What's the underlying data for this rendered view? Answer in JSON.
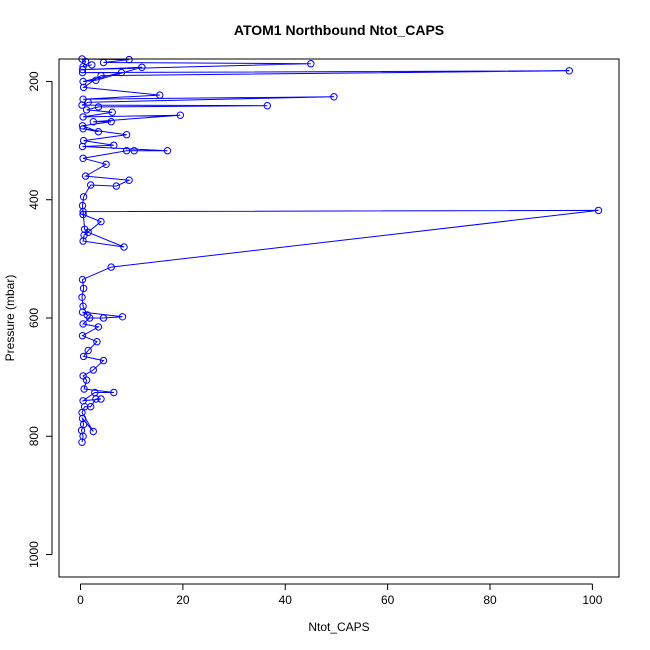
{
  "chart_data": {
    "type": "line",
    "title": "ATOM1 Northbound Ntot_CAPS",
    "xlabel": "Ntot_CAPS",
    "ylabel": "Pressure (mbar)",
    "xlim": [
      -4.2,
      105.2
    ],
    "ylim": [
      1038,
      162
    ],
    "y_reversed": true,
    "xticks": [
      0,
      20,
      40,
      60,
      80,
      100
    ],
    "yticks": [
      200,
      400,
      600,
      800,
      1000
    ],
    "grid": false,
    "marker": "open-circle",
    "line_color": "#0000ff",
    "series": [
      {
        "points": [
          [
            0.3,
            810
          ],
          [
            0.5,
            800
          ],
          [
            0.2,
            790
          ],
          [
            0.6,
            780
          ],
          [
            0.4,
            770
          ],
          [
            2.5,
            792
          ],
          [
            0.3,
            760
          ],
          [
            0.8,
            750
          ],
          [
            2.0,
            750
          ],
          [
            3.0,
            737
          ],
          [
            4.0,
            737
          ],
          [
            0.5,
            740
          ],
          [
            2.8,
            726
          ],
          [
            6.5,
            726
          ],
          [
            0.7,
            720
          ],
          [
            1.2,
            705
          ],
          [
            0.5,
            698
          ],
          [
            2.5,
            688
          ],
          [
            4.5,
            672
          ],
          [
            0.6,
            665
          ],
          [
            1.5,
            655
          ],
          [
            3.2,
            640
          ],
          [
            0.4,
            630
          ],
          [
            3.5,
            615
          ],
          [
            0.5,
            610
          ],
          [
            1.8,
            600
          ],
          [
            4.5,
            600
          ],
          [
            8.2,
            598
          ],
          [
            0.4,
            590
          ],
          [
            1.3,
            595
          ],
          [
            0.5,
            580
          ],
          [
            0.3,
            565
          ],
          [
            0.6,
            550
          ],
          [
            0.4,
            535
          ],
          [
            6.0,
            514
          ],
          [
            101.2,
            418
          ],
          [
            0.5,
            420
          ],
          [
            0.8,
            450
          ],
          [
            1.5,
            455
          ],
          [
            8.5,
            480
          ],
          [
            0.5,
            470
          ],
          [
            0.7,
            460
          ],
          [
            4.0,
            437
          ],
          [
            0.5,
            425
          ],
          [
            0.4,
            410
          ],
          [
            0.6,
            395
          ],
          [
            2.0,
            375
          ],
          [
            7.0,
            377
          ],
          [
            9.5,
            367
          ],
          [
            1.0,
            360
          ],
          [
            5.0,
            340
          ],
          [
            0.5,
            330
          ],
          [
            9.0,
            317
          ],
          [
            10.5,
            317
          ],
          [
            17.0,
            317
          ],
          [
            0.4,
            310
          ],
          [
            6.5,
            308
          ],
          [
            0.6,
            300
          ],
          [
            9.0,
            290
          ],
          [
            0.5,
            280
          ],
          [
            3.5,
            285
          ],
          [
            0.4,
            275
          ],
          [
            6.0,
            268
          ],
          [
            2.5,
            268
          ],
          [
            19.5,
            257
          ],
          [
            0.5,
            260
          ],
          [
            6.2,
            252
          ],
          [
            1.2,
            248
          ],
          [
            3.5,
            243
          ],
          [
            36.5,
            241
          ],
          [
            0.3,
            240
          ],
          [
            1.5,
            235
          ],
          [
            49.5,
            226
          ],
          [
            0.5,
            230
          ],
          [
            15.5,
            223
          ],
          [
            0.6,
            210
          ],
          [
            4.0,
            190
          ],
          [
            95.5,
            182
          ],
          [
            0.4,
            185
          ],
          [
            8.0,
            185
          ],
          [
            0.5,
            200
          ],
          [
            3.0,
            198
          ],
          [
            12.0,
            176
          ],
          [
            0.4,
            180
          ],
          [
            45.0,
            170
          ],
          [
            4.5,
            168
          ],
          [
            9.5,
            163
          ],
          [
            0.3,
            162
          ],
          [
            1.0,
            166
          ],
          [
            0.5,
            175
          ],
          [
            2.2,
            172
          ]
        ]
      }
    ]
  }
}
